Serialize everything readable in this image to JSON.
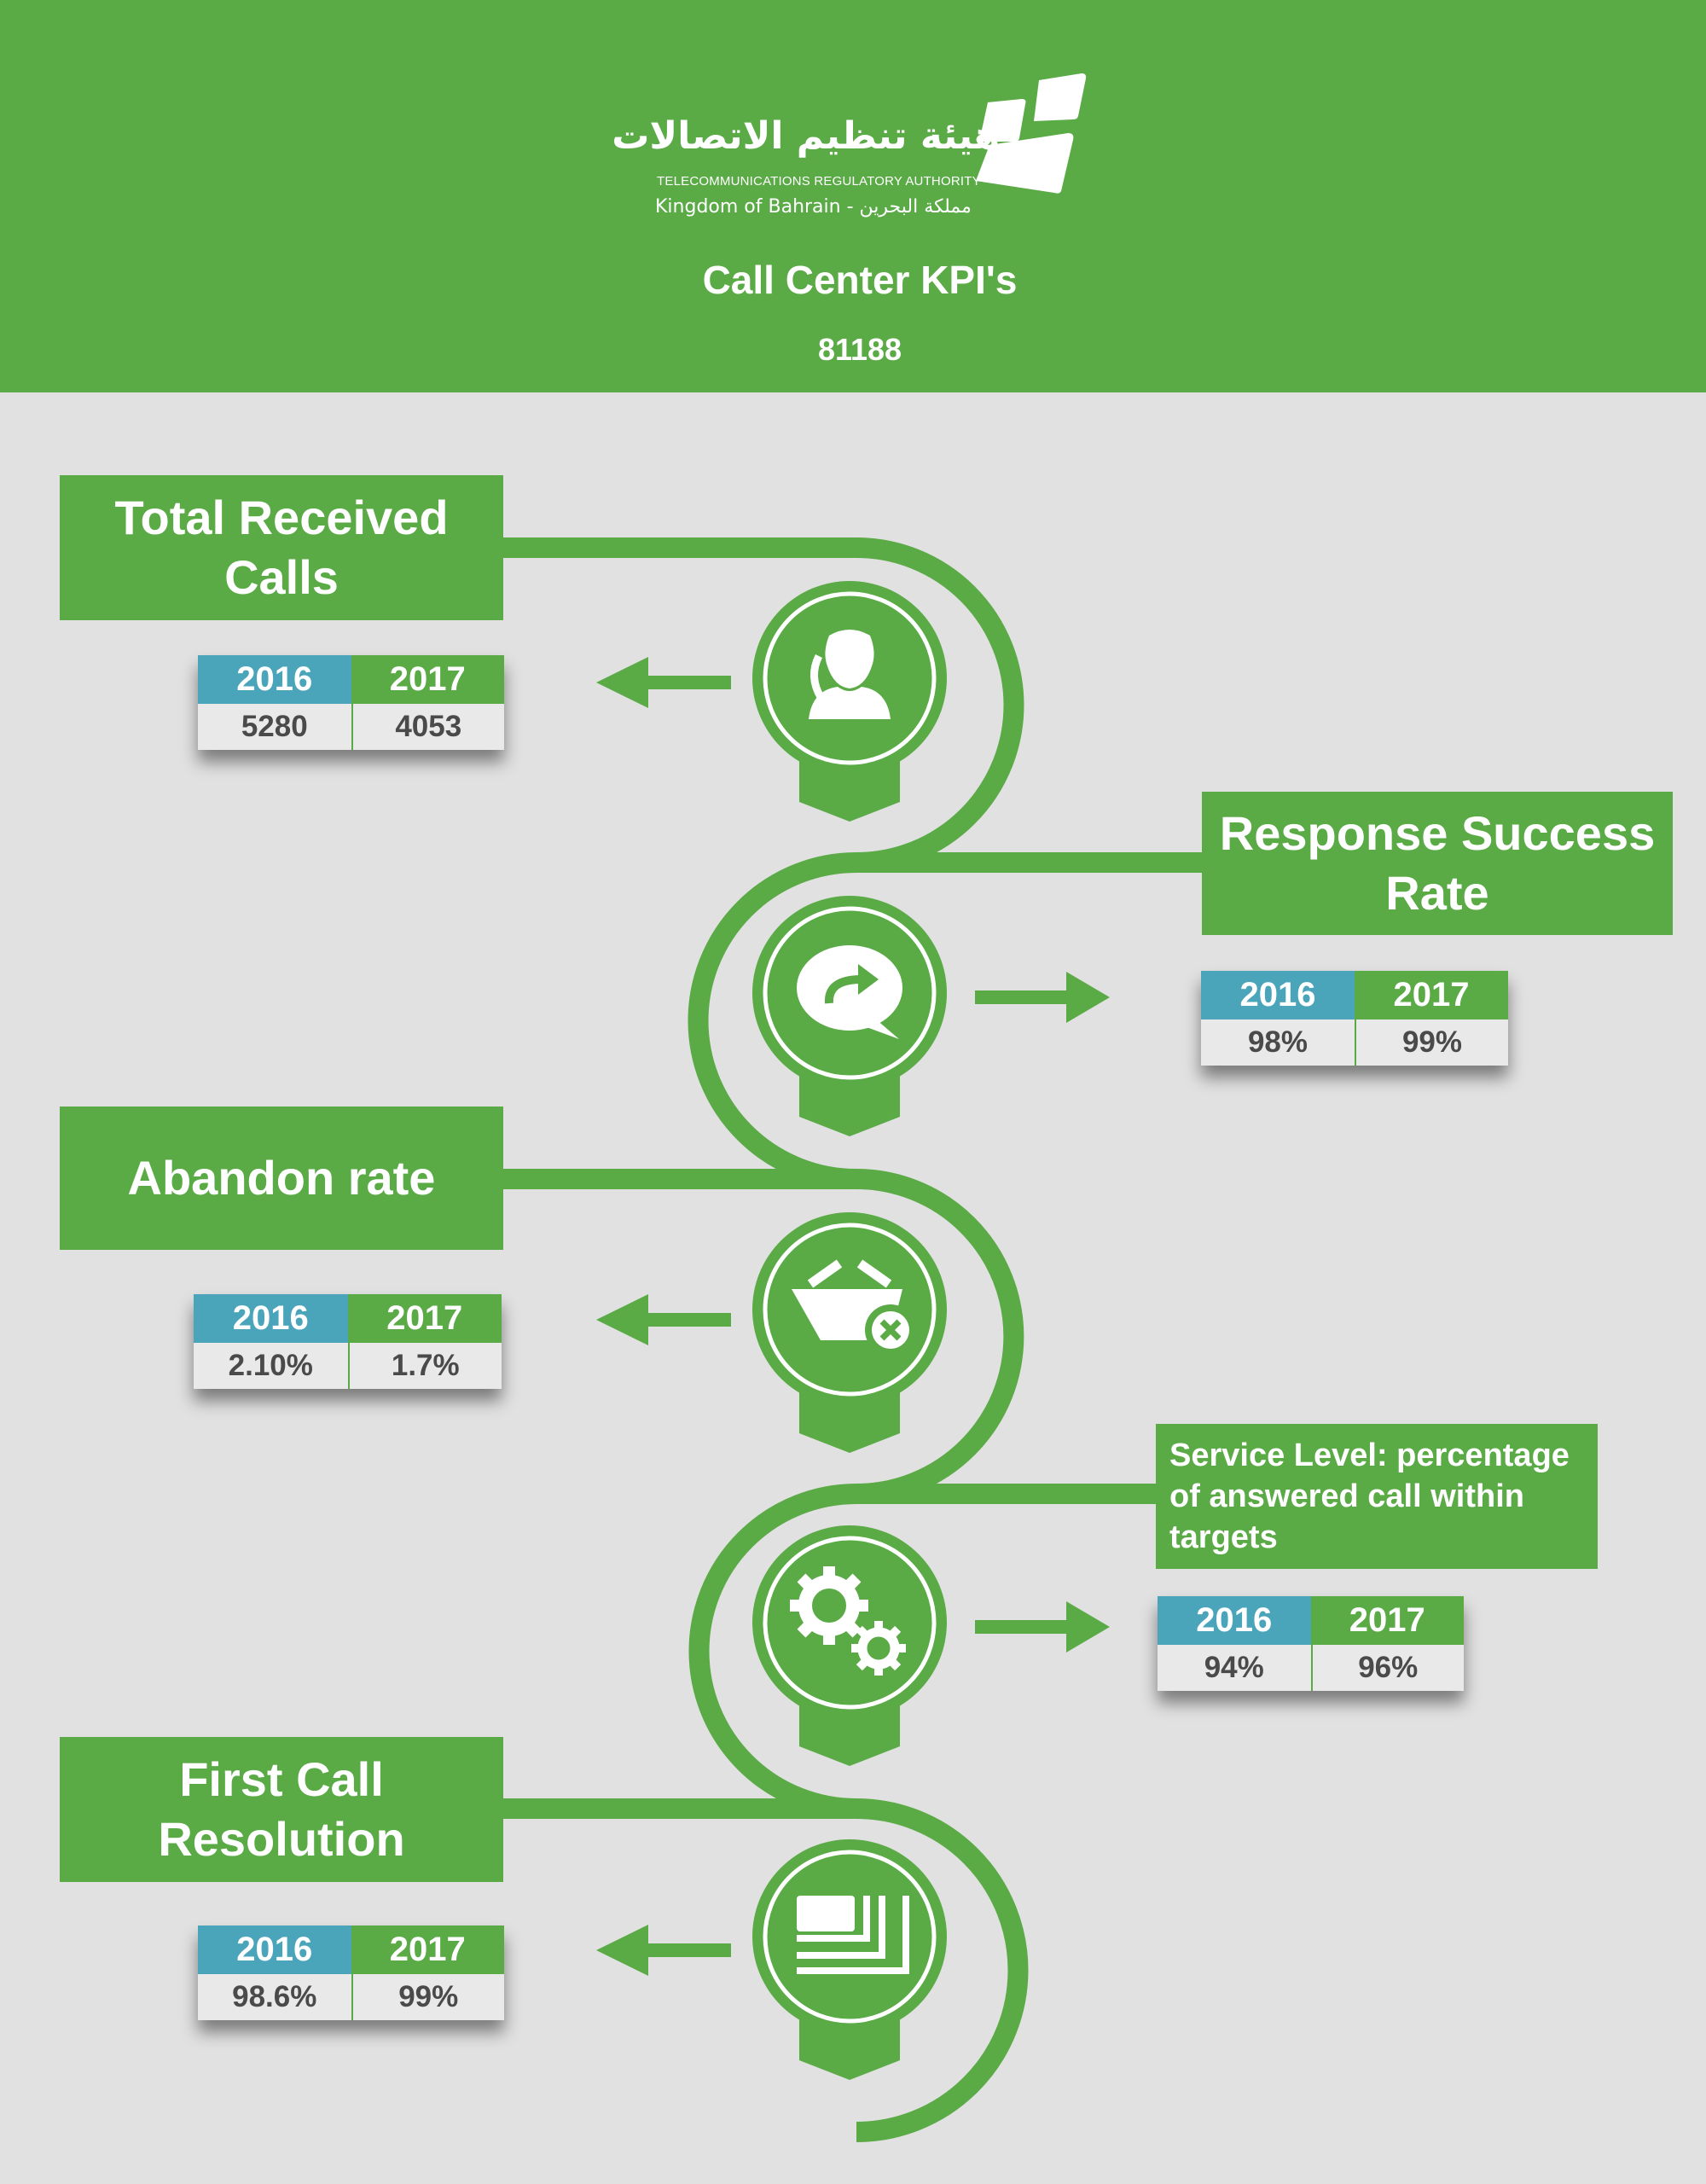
{
  "header": {
    "org_name_arabic": "هيئة تنظيم الاتصالات",
    "org_name_english": "TELECOMMUNICATIONS REGULATORY AUTHORITY",
    "country_line": "Kingdom of Bahrain - مملكة البحرين",
    "title": "Call Center KPI's",
    "number": "81188"
  },
  "colors": {
    "green": "#5aaa46",
    "blue": "#4aa5bb",
    "background": "#e1e1e1"
  },
  "kpis": [
    {
      "label": "Total Received Calls",
      "icon": "call-agent-icon",
      "year_a": "2016",
      "value_a": "5280",
      "year_b": "2017",
      "value_b": "4053"
    },
    {
      "label": "Response Success Rate",
      "icon": "chat-reply-icon",
      "year_a": "2016",
      "value_a": "98%",
      "year_b": "2017",
      "value_b": "99%"
    },
    {
      "label": "Abandon rate",
      "icon": "basket-cancel-icon",
      "year_a": "2016",
      "value_a": "2.10%",
      "year_b": "2017",
      "value_b": "1.7%"
    },
    {
      "label": "Service Level: percentage of answered call within targets",
      "icon": "gears-icon",
      "year_a": "2016",
      "value_a": "94%",
      "year_b": "2017",
      "value_b": "96%"
    },
    {
      "label": "First Call Resolution",
      "icon": "cards-icon",
      "year_a": "2016",
      "value_a": "98.6%",
      "year_b": "2017",
      "value_b": "99%"
    }
  ]
}
